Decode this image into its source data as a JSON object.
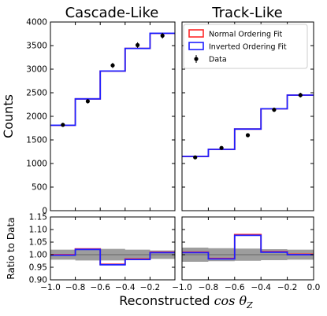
{
  "colors": {
    "normal_ordering": "#ff2a2a",
    "inverted_ordering": "#1f1fff",
    "data_points": "#000000",
    "ratio_band": "#8c8c8c"
  },
  "chart_data": [
    {
      "type": "line",
      "subplot": "main-left",
      "title": "Cascade-Like",
      "ylabel": "Counts",
      "ylim": [
        0,
        4000
      ],
      "yticks": [
        "0",
        "500",
        "1000",
        "1500",
        "2000",
        "2500",
        "3000",
        "3500",
        "4000"
      ],
      "xlim": [
        -1.0,
        0.0
      ],
      "bin_edges": [
        -1.0,
        -0.8,
        -0.6,
        -0.4,
        -0.2,
        0.0
      ],
      "series": [
        {
          "name": "Normal Ordering Fit",
          "style": "step",
          "values": [
            1810,
            2370,
            2960,
            3440,
            3760
          ]
        },
        {
          "name": "Inverted Ordering Fit",
          "style": "step",
          "values": [
            1810,
            2370,
            2960,
            3440,
            3760
          ]
        },
        {
          "name": "Data",
          "style": "points",
          "x": [
            -0.9,
            -0.7,
            -0.5,
            -0.3,
            -0.1
          ],
          "values": [
            1820,
            2320,
            3080,
            3510,
            3710
          ],
          "yerr": [
            43,
            48,
            55,
            59,
            61
          ]
        }
      ]
    },
    {
      "type": "line",
      "subplot": "main-right",
      "title": "Track-Like",
      "ylim": [
        0,
        4000
      ],
      "xlim": [
        -1.0,
        0.0
      ],
      "bin_edges": [
        -1.0,
        -0.8,
        -0.6,
        -0.4,
        -0.2,
        0.0
      ],
      "series": [
        {
          "name": "Normal Ordering Fit",
          "style": "step",
          "values": [
            1150,
            1300,
            1730,
            2160,
            2450
          ]
        },
        {
          "name": "Inverted Ordering Fit",
          "style": "step",
          "values": [
            1150,
            1300,
            1730,
            2160,
            2450
          ]
        },
        {
          "name": "Data",
          "style": "points",
          "x": [
            -0.9,
            -0.7,
            -0.5,
            -0.3,
            -0.1
          ],
          "values": [
            1130,
            1330,
            1600,
            2140,
            2450
          ],
          "yerr": [
            34,
            37,
            40,
            46,
            50
          ]
        }
      ],
      "legend": {
        "placement": "top-right",
        "entries": [
          "Normal Ordering Fit",
          "Inverted Ordering Fit",
          "Data"
        ]
      }
    },
    {
      "type": "line",
      "subplot": "ratio-left",
      "ylabel": "Ratio to Data",
      "ylim": [
        0.9,
        1.15
      ],
      "yticks": [
        "0.90",
        "0.95",
        "1.00",
        "1.05",
        "1.10",
        "1.15"
      ],
      "xlim": [
        -1.0,
        0.0
      ],
      "xticks": [
        "−1.0",
        "−0.8",
        "−0.6",
        "−0.4",
        "−0.2"
      ],
      "bin_edges": [
        -1.0,
        -0.8,
        -0.6,
        -0.4,
        -0.2,
        0.0
      ],
      "band_halfwidth": [
        0.02,
        0.023,
        0.023,
        0.02,
        0.017
      ],
      "series": [
        {
          "name": "Normal Ordering Fit",
          "style": "step",
          "values": [
            1.0,
            1.023,
            0.962,
            0.983,
            1.01
          ]
        },
        {
          "name": "Inverted Ordering Fit",
          "style": "step",
          "values": [
            0.998,
            1.021,
            0.96,
            0.981,
            1.008
          ]
        }
      ]
    },
    {
      "type": "line",
      "subplot": "ratio-right",
      "ylim": [
        0.9,
        1.15
      ],
      "xlim": [
        -1.0,
        0.0
      ],
      "xticks": [
        "−1.0",
        "−0.8",
        "−0.6",
        "−0.4",
        "−0.2",
        "0.0"
      ],
      "bin_edges": [
        -1.0,
        -0.8,
        -0.6,
        -0.4,
        -0.2,
        0.0
      ],
      "band_halfwidth": [
        0.028,
        0.026,
        0.024,
        0.022,
        0.02
      ],
      "series": [
        {
          "name": "Normal Ordering Fit",
          "style": "step",
          "values": [
            1.01,
            0.985,
            1.08,
            1.012,
            1.002
          ]
        },
        {
          "name": "Inverted Ordering Fit",
          "style": "step",
          "values": [
            1.008,
            0.983,
            1.077,
            1.01,
            1.0
          ]
        }
      ]
    }
  ],
  "figure": {
    "xlabel_text": "Reconstructed",
    "xlabel_math": "cos θ",
    "xlabel_sub": "Z"
  }
}
